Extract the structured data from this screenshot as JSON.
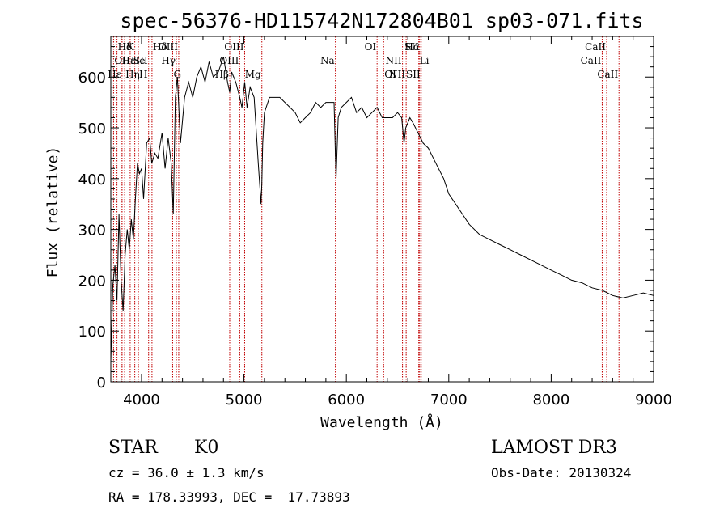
{
  "chart_data": {
    "type": "line",
    "title": "spec-56376-HD115742N172804B01_sp03-071.fits",
    "xlabel": "Wavelength (Å)",
    "ylabel": "Flux (relative)",
    "xlim": [
      3700,
      9000
    ],
    "ylim": [
      0,
      680
    ],
    "xticks": [
      "4000",
      "5000",
      "6000",
      "7000",
      "8000",
      "9000"
    ],
    "yticks": [
      "0",
      "100",
      "200",
      "300",
      "400",
      "500",
      "600"
    ],
    "grid": false,
    "series": [
      {
        "name": "flux",
        "x": [
          3700,
          3720,
          3740,
          3760,
          3780,
          3800,
          3820,
          3840,
          3860,
          3880,
          3900,
          3920,
          3940,
          3960,
          3980,
          4000,
          4020,
          4050,
          4080,
          4100,
          4130,
          4160,
          4200,
          4230,
          4260,
          4290,
          4310,
          4330,
          4350,
          4380,
          4420,
          4460,
          4500,
          4540,
          4580,
          4620,
          4660,
          4700,
          4750,
          4800,
          4840,
          4861,
          4880,
          4920,
          4959,
          4980,
          5007,
          5030,
          5060,
          5100,
          5140,
          5167,
          5175,
          5183,
          5200,
          5250,
          5300,
          5350,
          5400,
          5450,
          5500,
          5550,
          5600,
          5650,
          5700,
          5750,
          5800,
          5850,
          5880,
          5893,
          5900,
          5920,
          5950,
          6000,
          6050,
          6100,
          6150,
          6200,
          6250,
          6300,
          6350,
          6400,
          6450,
          6500,
          6540,
          6563,
          6580,
          6620,
          6650,
          6700,
          6750,
          6800,
          6850,
          6900,
          6950,
          7000,
          7100,
          7200,
          7300,
          7400,
          7500,
          7600,
          7700,
          7800,
          7900,
          8000,
          8100,
          8200,
          8300,
          8400,
          8500,
          8600,
          8700,
          8800,
          8900,
          9000
        ],
        "values": [
          40,
          190,
          230,
          160,
          330,
          200,
          140,
          250,
          300,
          260,
          320,
          280,
          360,
          430,
          410,
          420,
          360,
          470,
          480,
          430,
          450,
          440,
          490,
          420,
          480,
          430,
          330,
          560,
          600,
          470,
          560,
          590,
          560,
          600,
          620,
          590,
          630,
          600,
          610,
          640,
          590,
          570,
          610,
          590,
          560,
          540,
          590,
          540,
          580,
          560,
          430,
          350,
          390,
          470,
          530,
          560,
          560,
          560,
          550,
          540,
          530,
          510,
          520,
          530,
          550,
          540,
          550,
          550,
          550,
          450,
          400,
          520,
          540,
          550,
          560,
          530,
          540,
          520,
          530,
          540,
          520,
          520,
          520,
          530,
          520,
          470,
          500,
          520,
          510,
          490,
          470,
          460,
          440,
          420,
          400,
          370,
          340,
          310,
          290,
          280,
          270,
          260,
          250,
          240,
          230,
          220,
          210,
          200,
          195,
          185,
          180,
          170,
          165,
          170,
          175,
          170
        ]
      }
    ],
    "lines": [
      {
        "label": "Hδ",
        "x": 3760,
        "row": 1,
        "side": "right"
      },
      {
        "label": "OII",
        "x": 3727,
        "row": 2,
        "side": "right"
      },
      {
        "label": "Hε",
        "x": 3800,
        "row": 2,
        "side": "right"
      },
      {
        "label": "Hε",
        "x": 3810,
        "row": 3,
        "side": "left"
      },
      {
        "label": "Hη",
        "x": 3835,
        "row": 3,
        "side": "right"
      },
      {
        "label": "K",
        "x": 3934,
        "row": 1,
        "side": "left"
      },
      {
        "label": "He",
        "x": 3889,
        "row": 2,
        "side": "right"
      },
      {
        "label": "SII",
        "x": 4069,
        "row": 2,
        "side": "left"
      },
      {
        "label": "H",
        "x": 3969,
        "row": 3,
        "side": "right"
      },
      {
        "label": "Hδ",
        "x": 4102,
        "row": 1,
        "side": "right"
      },
      {
        "label": "OIII",
        "x": 4363,
        "row": 1,
        "side": "left"
      },
      {
        "label": "Hγ",
        "x": 4340,
        "row": 2,
        "side": "left"
      },
      {
        "label": "G",
        "x": 4304,
        "row": 3,
        "side": "right"
      },
      {
        "label": "OIII",
        "x": 5007,
        "row": 1,
        "side": "left"
      },
      {
        "label": "OIII",
        "x": 4959,
        "row": 2,
        "side": "left"
      },
      {
        "label": "Hβ",
        "x": 4861,
        "row": 3,
        "side": "left"
      },
      {
        "label": "Mg",
        "x": 5175,
        "row": 3,
        "side": "left"
      },
      {
        "label": "Na",
        "x": 5893,
        "row": 2,
        "side": "left"
      },
      {
        "label": "OI",
        "x": 6300,
        "row": 1,
        "side": "left"
      },
      {
        "label": "OI",
        "x": 6364,
        "row": 3,
        "side": "right"
      },
      {
        "label": "Hα",
        "x": 6563,
        "row": 1,
        "side": "right"
      },
      {
        "label": "SII",
        "x": 6716,
        "row": 1,
        "side": "left"
      },
      {
        "label": "NII",
        "x": 6548,
        "row": 2,
        "side": "left"
      },
      {
        "label": "Li",
        "x": 6707,
        "row": 2,
        "side": "right"
      },
      {
        "label": "NII",
        "x": 6584,
        "row": 3,
        "side": "left"
      },
      {
        "label": "SII",
        "x": 6731,
        "row": 3,
        "side": "left"
      },
      {
        "label": "CaII",
        "x": 8542,
        "row": 1,
        "side": "left"
      },
      {
        "label": "CaII",
        "x": 8498,
        "row": 2,
        "side": "left"
      },
      {
        "label": "CaII",
        "x": 8662,
        "row": 3,
        "side": "left"
      }
    ]
  },
  "info": {
    "object_class": "STAR",
    "subclass": "K0",
    "survey": "LAMOST DR3",
    "redshift": "cz = 36.0 ± 1.3 km/s",
    "obs_date": "Obs-Date: 20130324",
    "coords": "RA = 178.33993, DEC =  17.73893"
  },
  "colors": {
    "line_marker": "#c00000",
    "spectrum": "#000000"
  }
}
